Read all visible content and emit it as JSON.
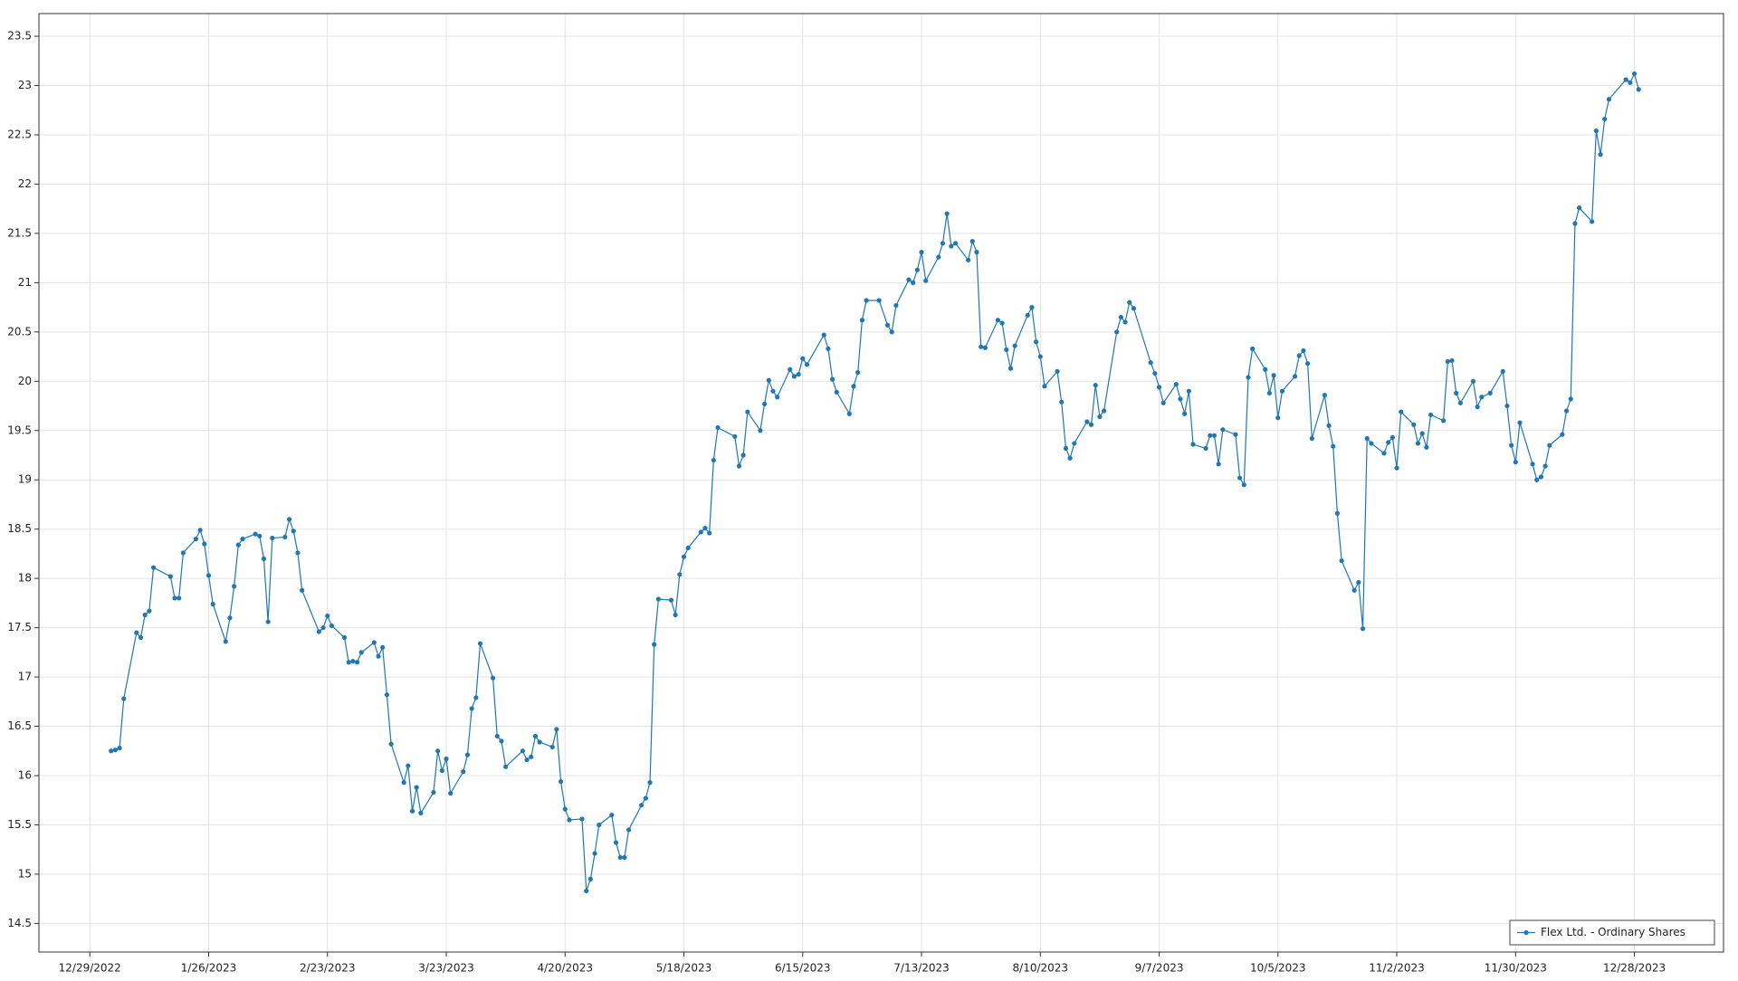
{
  "chart_data": {
    "type": "line",
    "x": [
      "1/3/2023",
      "1/4/2023",
      "1/5/2023",
      "1/6/2023",
      "1/9/2023",
      "1/10/2023",
      "1/11/2023",
      "1/12/2023",
      "1/13/2023",
      "1/17/2023",
      "1/18/2023",
      "1/19/2023",
      "1/20/2023",
      "1/23/2023",
      "1/24/2023",
      "1/25/2023",
      "1/26/2023",
      "1/27/2023",
      "1/30/2023",
      "1/31/2023",
      "2/1/2023",
      "2/2/2023",
      "2/3/2023",
      "2/6/2023",
      "2/7/2023",
      "2/8/2023",
      "2/9/2023",
      "2/10/2023",
      "2/13/2023",
      "2/14/2023",
      "2/15/2023",
      "2/16/2023",
      "2/17/2023",
      "2/21/2023",
      "2/22/2023",
      "2/23/2023",
      "2/24/2023",
      "2/27/2023",
      "2/28/2023",
      "3/1/2023",
      "3/2/2023",
      "3/3/2023",
      "3/6/2023",
      "3/7/2023",
      "3/8/2023",
      "3/9/2023",
      "3/10/2023",
      "3/13/2023",
      "3/14/2023",
      "3/15/2023",
      "3/16/2023",
      "3/17/2023",
      "3/20/2023",
      "3/21/2023",
      "3/22/2023",
      "3/23/2023",
      "3/24/2023",
      "3/27/2023",
      "3/28/2023",
      "3/29/2023",
      "3/30/2023",
      "3/31/2023",
      "4/3/2023",
      "4/4/2023",
      "4/5/2023",
      "4/6/2023",
      "4/10/2023",
      "4/11/2023",
      "4/12/2023",
      "4/13/2023",
      "4/14/2023",
      "4/17/2023",
      "4/18/2023",
      "4/19/2023",
      "4/20/2023",
      "4/21/2023",
      "4/24/2023",
      "4/25/2023",
      "4/26/2023",
      "4/27/2023",
      "4/28/2023",
      "5/1/2023",
      "5/2/2023",
      "5/3/2023",
      "5/4/2023",
      "5/5/2023",
      "5/8/2023",
      "5/9/2023",
      "5/10/2023",
      "5/11/2023",
      "5/12/2023",
      "5/15/2023",
      "5/16/2023",
      "5/17/2023",
      "5/18/2023",
      "5/19/2023",
      "5/22/2023",
      "5/23/2023",
      "5/24/2023",
      "5/25/2023",
      "5/26/2023",
      "5/30/2023",
      "5/31/2023",
      "6/1/2023",
      "6/2/2023",
      "6/5/2023",
      "6/6/2023",
      "6/7/2023",
      "6/8/2023",
      "6/9/2023",
      "6/12/2023",
      "6/13/2023",
      "6/14/2023",
      "6/15/2023",
      "6/16/2023",
      "6/20/2023",
      "6/21/2023",
      "6/22/2023",
      "6/23/2023",
      "6/26/2023",
      "6/27/2023",
      "6/28/2023",
      "6/29/2023",
      "6/30/2023",
      "7/3/2023",
      "7/5/2023",
      "7/6/2023",
      "7/7/2023",
      "7/10/2023",
      "7/11/2023",
      "7/12/2023",
      "7/13/2023",
      "7/14/2023",
      "7/17/2023",
      "7/18/2023",
      "7/19/2023",
      "7/20/2023",
      "7/21/2023",
      "7/24/2023",
      "7/25/2023",
      "7/26/2023",
      "7/27/2023",
      "7/28/2023",
      "7/31/2023",
      "8/1/2023",
      "8/2/2023",
      "8/3/2023",
      "8/4/2023",
      "8/7/2023",
      "8/8/2023",
      "8/9/2023",
      "8/10/2023",
      "8/11/2023",
      "8/14/2023",
      "8/15/2023",
      "8/16/2023",
      "8/17/2023",
      "8/18/2023",
      "8/21/2023",
      "8/22/2023",
      "8/23/2023",
      "8/24/2023",
      "8/25/2023",
      "8/28/2023",
      "8/29/2023",
      "8/30/2023",
      "8/31/2023",
      "9/1/2023",
      "9/5/2023",
      "9/6/2023",
      "9/7/2023",
      "9/8/2023",
      "9/11/2023",
      "9/12/2023",
      "9/13/2023",
      "9/14/2023",
      "9/15/2023",
      "9/18/2023",
      "9/19/2023",
      "9/20/2023",
      "9/21/2023",
      "9/22/2023",
      "9/25/2023",
      "9/26/2023",
      "9/27/2023",
      "9/28/2023",
      "9/29/2023",
      "10/2/2023",
      "10/3/2023",
      "10/4/2023",
      "10/5/2023",
      "10/6/2023",
      "10/9/2023",
      "10/10/2023",
      "10/11/2023",
      "10/12/2023",
      "10/13/2023",
      "10/16/2023",
      "10/17/2023",
      "10/18/2023",
      "10/19/2023",
      "10/20/2023",
      "10/23/2023",
      "10/24/2023",
      "10/25/2023",
      "10/26/2023",
      "10/27/2023",
      "10/30/2023",
      "10/31/2023",
      "11/1/2023",
      "11/2/2023",
      "11/3/2023",
      "11/6/2023",
      "11/7/2023",
      "11/8/2023",
      "11/9/2023",
      "11/10/2023",
      "11/13/2023",
      "11/14/2023",
      "11/15/2023",
      "11/16/2023",
      "11/17/2023",
      "11/20/2023",
      "11/21/2023",
      "11/22/2023",
      "11/24/2023",
      "11/27/2023",
      "11/28/2023",
      "11/29/2023",
      "11/30/2023",
      "12/1/2023",
      "12/4/2023",
      "12/5/2023",
      "12/6/2023",
      "12/7/2023",
      "12/8/2023",
      "12/11/2023",
      "12/12/2023",
      "12/13/2023",
      "12/14/2023",
      "12/15/2023",
      "12/18/2023",
      "12/19/2023",
      "12/20/2023",
      "12/21/2023",
      "12/22/2023",
      "12/26/2023",
      "12/27/2023",
      "12/28/2023",
      "12/29/2023"
    ],
    "series": [
      {
        "name": "Flex Ltd. - Ordinary Shares",
        "color": "#1f77b4",
        "values": [
          16.25,
          16.26,
          16.28,
          16.78,
          17.45,
          17.4,
          17.63,
          17.67,
          18.11,
          18.02,
          17.8,
          17.8,
          18.26,
          18.4,
          18.49,
          18.35,
          18.03,
          17.74,
          17.36,
          17.6,
          17.92,
          18.34,
          18.4,
          18.45,
          18.43,
          18.2,
          17.56,
          18.41,
          18.42,
          18.6,
          18.48,
          18.26,
          17.88,
          17.46,
          17.5,
          17.62,
          17.52,
          17.4,
          17.15,
          17.16,
          17.15,
          17.25,
          17.35,
          17.21,
          17.3,
          16.82,
          16.32,
          15.93,
          16.1,
          15.64,
          15.88,
          15.62,
          15.83,
          16.25,
          16.05,
          16.17,
          15.82,
          16.04,
          16.21,
          16.68,
          16.79,
          17.34,
          16.99,
          16.4,
          16.35,
          16.09,
          16.25,
          16.16,
          16.19,
          16.4,
          16.34,
          16.29,
          16.47,
          15.94,
          15.66,
          15.55,
          15.56,
          14.83,
          14.95,
          15.21,
          15.5,
          15.6,
          15.32,
          15.17,
          15.17,
          15.45,
          15.7,
          15.77,
          15.93,
          17.33,
          17.79,
          17.78,
          17.63,
          18.04,
          18.22,
          18.31,
          18.47,
          18.51,
          18.46,
          19.2,
          19.53,
          19.44,
          19.14,
          19.25,
          19.69,
          19.5,
          19.77,
          20.01,
          19.9,
          19.84,
          20.12,
          20.05,
          20.07,
          20.23,
          20.17,
          20.47,
          20.33,
          20.02,
          19.89,
          19.67,
          19.95,
          20.09,
          20.62,
          20.82,
          20.82,
          20.57,
          20.5,
          20.77,
          21.03,
          21.0,
          21.13,
          21.31,
          21.02,
          21.26,
          21.4,
          21.7,
          21.37,
          21.4,
          21.23,
          21.42,
          21.31,
          20.35,
          20.34,
          20.62,
          20.59,
          20.32,
          20.13,
          20.36,
          20.67,
          20.75,
          20.4,
          20.25,
          19.95,
          20.1,
          19.79,
          19.32,
          19.22,
          19.37,
          19.59,
          19.56,
          19.96,
          19.64,
          19.7,
          20.5,
          20.65,
          20.6,
          20.8,
          20.74,
          20.19,
          20.08,
          19.94,
          19.78,
          19.97,
          19.82,
          19.67,
          19.9,
          19.36,
          19.32,
          19.45,
          19.45,
          19.16,
          19.51,
          19.46,
          19.02,
          18.95,
          20.04,
          20.33,
          20.12,
          19.88,
          20.06,
          19.63,
          19.9,
          20.05,
          20.26,
          20.31,
          20.18,
          19.42,
          19.86,
          19.55,
          19.34,
          18.66,
          18.18,
          17.88,
          17.96,
          17.49,
          19.42,
          19.37,
          19.27,
          19.38,
          19.43,
          19.12,
          19.69,
          19.56,
          19.37,
          19.47,
          19.33,
          19.66,
          19.6,
          20.2,
          20.21,
          19.88,
          19.78,
          20.0,
          19.74,
          19.84,
          19.88,
          20.1,
          19.75,
          19.35,
          19.18,
          19.58,
          19.16,
          19.0,
          19.03,
          19.14,
          19.35,
          19.46,
          19.7,
          19.82,
          21.6,
          21.76,
          21.62,
          22.54,
          22.3,
          22.66,
          22.86,
          23.06,
          23.03,
          23.12,
          22.96
        ]
      }
    ],
    "xlim": [
      "12/17/2022",
      "1/18/2024"
    ],
    "xticks": [
      "12/29/2022",
      "1/26/2023",
      "2/23/2023",
      "3/23/2023",
      "4/20/2023",
      "5/18/2023",
      "6/15/2023",
      "7/13/2023",
      "8/10/2023",
      "9/7/2023",
      "10/5/2023",
      "11/2/2023",
      "11/30/2023",
      "12/28/2023"
    ],
    "ylim": [
      14.21,
      23.73
    ],
    "yticks": [
      14.5,
      15,
      15.5,
      16,
      16.5,
      17,
      17.5,
      18,
      18.5,
      19,
      19.5,
      20,
      20.5,
      21,
      21.5,
      22,
      22.5,
      23,
      23.5
    ],
    "grid": true,
    "legend": "bottom-right"
  }
}
